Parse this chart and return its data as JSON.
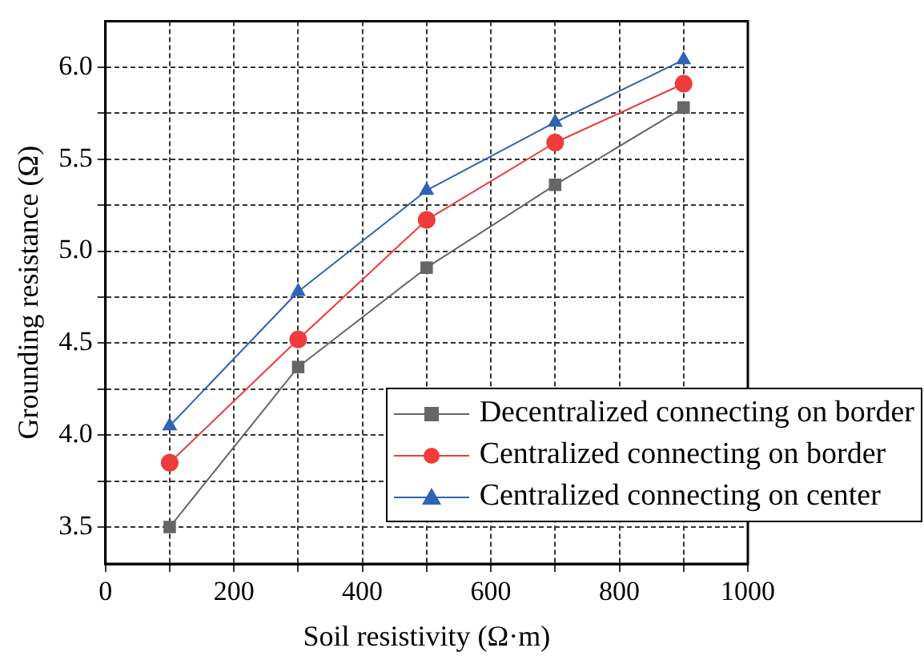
{
  "chart_data": {
    "type": "line",
    "xlabel": "Soil resistivity (Ω·m)",
    "ylabel": "Grounding resistance (Ω)",
    "x": [
      100,
      300,
      500,
      700,
      900
    ],
    "series": [
      {
        "name": "Decentralized connecting on border",
        "color": "#666666",
        "marker": "square",
        "values": [
          3.5,
          4.37,
          4.91,
          5.36,
          5.78
        ]
      },
      {
        "name": "Centralized connecting on border",
        "color": "#ee3b3b",
        "marker": "circle",
        "values": [
          3.85,
          4.52,
          5.17,
          5.59,
          5.91
        ]
      },
      {
        "name": "Centralized connecting on center",
        "color": "#2f63b5",
        "marker": "triangle",
        "values": [
          4.05,
          4.78,
          5.33,
          5.7,
          6.04
        ]
      }
    ],
    "xlim": [
      0,
      1000
    ],
    "xticks": [
      0,
      {
        "value": 100,
        "label": null
      },
      200,
      {
        "value": 300,
        "label": null
      },
      400,
      {
        "value": 500,
        "label": null
      },
      600,
      {
        "value": 700,
        "label": null
      },
      800,
      {
        "value": 900,
        "label": null
      },
      1000
    ],
    "ylim": [
      3.3,
      6.25
    ],
    "yticks": [
      3.5,
      {
        "value": 3.75,
        "label": null
      },
      "4.0",
      {
        "value": 4.25,
        "label": null
      },
      4.5,
      {
        "value": 4.75,
        "label": null
      },
      "5.0",
      {
        "value": 5.25,
        "label": null
      },
      5.5,
      {
        "value": 5.75,
        "label": null
      },
      "6.0"
    ],
    "grid": true,
    "line_style": "solid",
    "legend": "bottom right"
  }
}
